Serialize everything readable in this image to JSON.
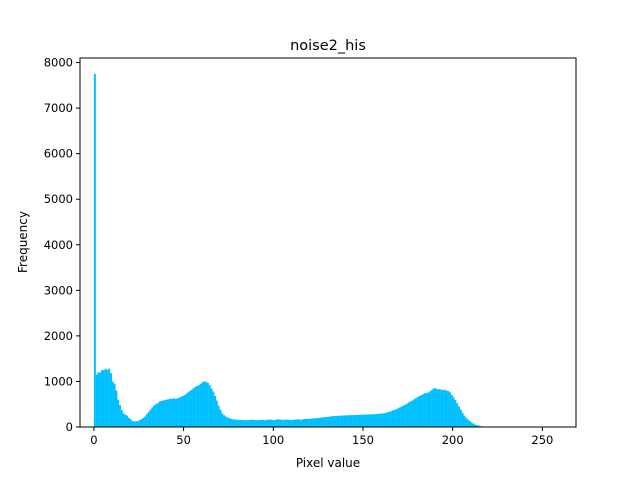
{
  "chart_data": {
    "type": "bar",
    "title": "noise2_his",
    "xlabel": "Pixel value",
    "ylabel": "Frequency",
    "xlim": [
      -7.75,
      268.75
    ],
    "ylim": [
      0,
      8100
    ],
    "xticks": [
      0,
      50,
      100,
      150,
      200,
      250
    ],
    "yticks": [
      0,
      1000,
      2000,
      3000,
      4000,
      5000,
      6000,
      7000,
      8000
    ],
    "bar_color": "#00bfff",
    "grid": false,
    "bins": "0..255 (bin width 1)",
    "values": [
      7750,
      1150,
      1200,
      1200,
      1250,
      1250,
      1280,
      1250,
      1280,
      1180,
      1000,
      950,
      800,
      600,
      480,
      370,
      300,
      270,
      250,
      200,
      170,
      130,
      120,
      130,
      130,
      150,
      170,
      200,
      230,
      280,
      330,
      380,
      430,
      470,
      500,
      520,
      550,
      570,
      580,
      590,
      600,
      610,
      620,
      620,
      630,
      620,
      630,
      640,
      660,
      680,
      700,
      730,
      760,
      790,
      820,
      850,
      880,
      900,
      920,
      950,
      980,
      1000,
      990,
      970,
      920,
      850,
      780,
      680,
      580,
      470,
      380,
      300,
      260,
      230,
      210,
      190,
      180,
      170,
      165,
      160,
      160,
      155,
      155,
      150,
      150,
      150,
      155,
      155,
      160,
      155,
      150,
      150,
      155,
      160,
      155,
      150,
      160,
      165,
      160,
      155,
      150,
      160,
      170,
      165,
      160,
      155,
      160,
      165,
      160,
      150,
      155,
      160,
      165,
      170,
      165,
      160,
      170,
      175,
      180,
      175,
      180,
      185,
      190,
      190,
      195,
      200,
      205,
      210,
      215,
      220,
      225,
      230,
      235,
      240,
      240,
      245,
      245,
      250,
      250,
      255,
      255,
      255,
      260,
      260,
      260,
      265,
      265,
      265,
      270,
      270,
      270,
      275,
      275,
      275,
      275,
      280,
      280,
      285,
      290,
      290,
      295,
      300,
      310,
      320,
      330,
      345,
      360,
      375,
      390,
      410,
      430,
      450,
      470,
      490,
      510,
      540,
      560,
      580,
      610,
      630,
      660,
      680,
      700,
      720,
      740,
      750,
      760,
      790,
      820,
      850,
      850,
      830,
      830,
      820,
      810,
      820,
      800,
      790,
      760,
      700,
      650,
      590,
      520,
      450,
      380,
      310,
      250,
      200,
      160,
      130,
      100,
      75,
      55,
      40,
      30,
      20,
      15,
      10,
      6,
      4,
      2,
      1,
      1,
      0,
      0,
      0,
      0,
      0,
      0,
      0,
      0,
      0,
      0,
      0,
      0,
      0,
      0,
      0,
      0,
      0,
      0,
      0,
      0,
      0,
      0,
      0,
      0,
      0,
      0,
      0,
      0,
      0,
      0,
      0,
      0,
      0,
      0
    ]
  }
}
